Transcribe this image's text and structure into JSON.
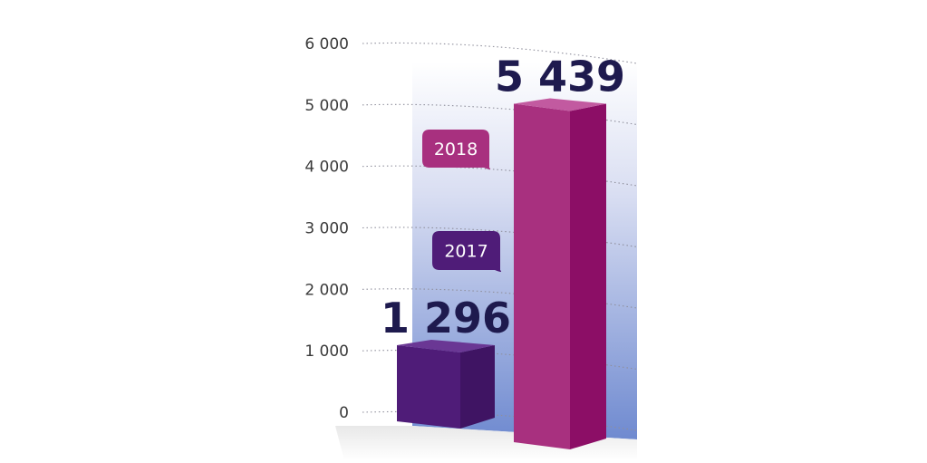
{
  "chart_data": {
    "type": "bar",
    "categories": [
      "2017",
      "2018"
    ],
    "values": [
      1296,
      5439
    ],
    "value_labels": [
      "1 296",
      "5 439"
    ],
    "ylim": [
      0,
      6000
    ],
    "y_ticks": [
      0,
      1000,
      2000,
      3000,
      4000,
      5000,
      6000
    ],
    "y_tick_labels": [
      "0",
      "1 000",
      "2 000",
      "3 000",
      "4 000",
      "5 000",
      "6 000"
    ],
    "grid": true,
    "colors": {
      "bar_2017": "#4f1c78",
      "bar_2018": "#a8307f",
      "label": "#1e1a4e",
      "background_gradient_top": "#ffffff",
      "background_gradient_bottom": "#6f8ad0"
    }
  }
}
